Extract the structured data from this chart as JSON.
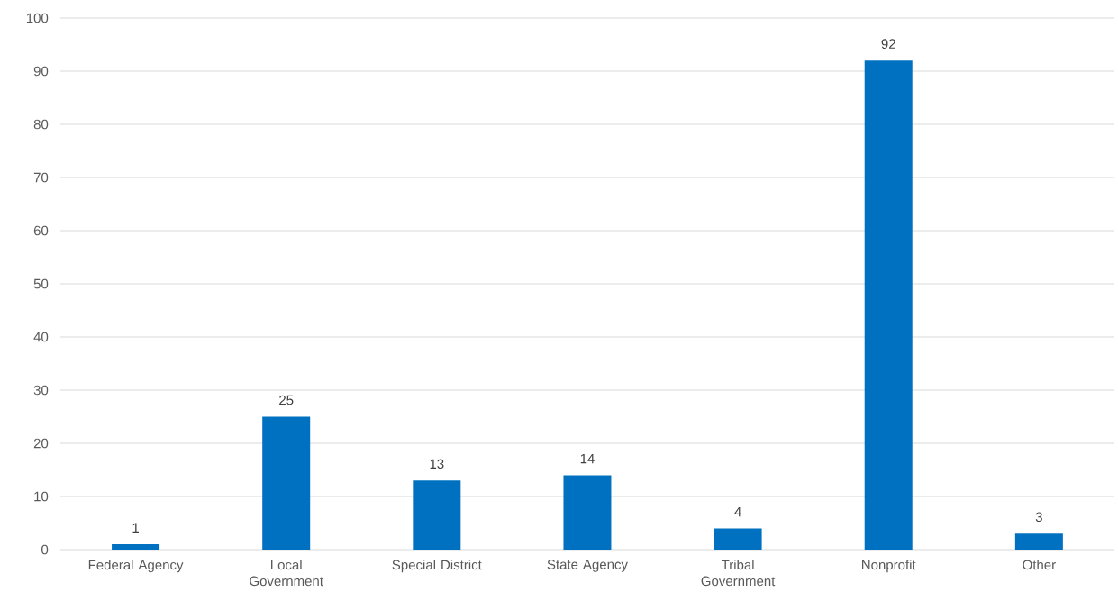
{
  "chart_data": {
    "type": "bar",
    "categories": [
      "Federal Agency",
      "Local Government",
      "Special District",
      "State Agency",
      "Tribal Government",
      "Nonprofit",
      "Other"
    ],
    "values": [
      1,
      25,
      13,
      14,
      4,
      92,
      3
    ],
    "color": "#0070c0",
    "ylim": [
      0,
      100
    ],
    "yticks": [
      0,
      10,
      20,
      30,
      40,
      50,
      60,
      70,
      80,
      90,
      100
    ],
    "grid": "y",
    "data_labels": true
  }
}
